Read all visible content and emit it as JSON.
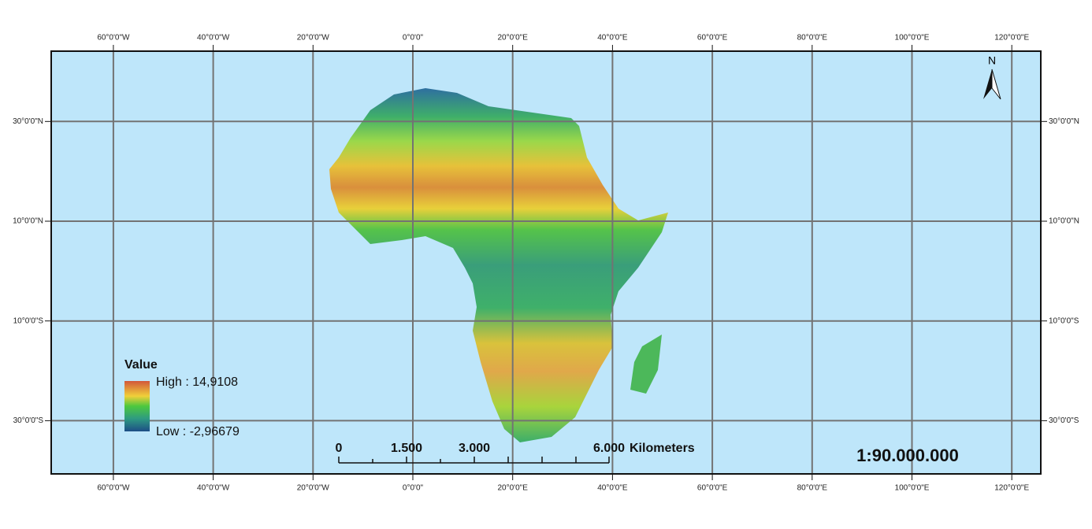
{
  "map": {
    "north_label": "N",
    "lon_ticks": [
      {
        "value": -60,
        "label": "60°0'0\"W"
      },
      {
        "value": -40,
        "label": "40°0'0\"W"
      },
      {
        "value": -20,
        "label": "20°0'0\"W"
      },
      {
        "value": 0,
        "label": "0°0'0\""
      },
      {
        "value": 20,
        "label": "20°0'0\"E"
      },
      {
        "value": 40,
        "label": "40°0'0\"E"
      },
      {
        "value": 60,
        "label": "60°0'0\"E"
      },
      {
        "value": 80,
        "label": "80°0'0\"E"
      },
      {
        "value": 100,
        "label": "100°0'0\"E"
      },
      {
        "value": 120,
        "label": "120°0'0\"E"
      }
    ],
    "lat_ticks": [
      {
        "value": 30,
        "label": "30°0'0\"N"
      },
      {
        "value": 10,
        "label": "10°0'0\"N"
      },
      {
        "value": -10,
        "label": "10°0'0\"S"
      },
      {
        "value": -30,
        "label": "30°0'0\"S"
      }
    ],
    "legend": {
      "title": "Value",
      "high": "High : 14,9108",
      "low": "Low : -2,96679"
    },
    "scale_bar": {
      "labels": [
        "0",
        "1.500",
        "3.000",
        "6.000"
      ],
      "unit": "Kilometers"
    },
    "scale_ratio": "1:90.000.000"
  }
}
